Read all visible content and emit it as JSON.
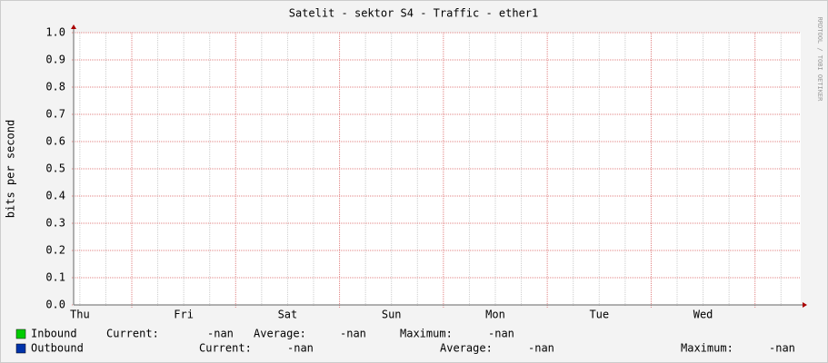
{
  "chart_data": {
    "type": "line",
    "title": "Satelit - sektor S4 - Traffic - ether1",
    "y_label": "bits per second",
    "watermark": "RRDTOOL / TOBI OETIKER",
    "categories": [
      "Thu",
      "Fri",
      "Sat",
      "Sun",
      "Mon",
      "Tue",
      "Wed"
    ],
    "ylim": [
      0,
      1
    ],
    "yticks": [
      {
        "value": 0,
        "label": "0.0"
      },
      {
        "value": 0.1,
        "label": "0.1"
      },
      {
        "value": 0.2,
        "label": "0.2"
      },
      {
        "value": 0.3,
        "label": "0.3"
      },
      {
        "value": 0.4,
        "label": "0.4"
      },
      {
        "value": 0.5,
        "label": "0.5"
      },
      {
        "value": 0.6,
        "label": "0.6"
      },
      {
        "value": 0.7,
        "label": "0.7"
      },
      {
        "value": 0.8,
        "label": "0.8"
      },
      {
        "value": 0.9,
        "label": "0.9"
      },
      {
        "value": 1,
        "label": "1.0"
      }
    ],
    "grid": true,
    "series": [
      {
        "name": "Inbound",
        "color": "#00cc00",
        "values": [
          null,
          null,
          null,
          null,
          null,
          null,
          null
        ],
        "stats": [
          {
            "label": "Current:",
            "value": "-nan"
          },
          {
            "label": "Average:",
            "value": "-nan"
          },
          {
            "label": "Maximum:",
            "value": "-nan"
          }
        ]
      },
      {
        "name": "Outbound",
        "color": "#0033aa",
        "values": [
          null,
          null,
          null,
          null,
          null,
          null,
          null
        ],
        "stats": [
          {
            "label": "Current:",
            "value": "-nan"
          },
          {
            "label": "Average:",
            "value": "-nan"
          },
          {
            "label": "Maximum:",
            "value": "-nan"
          }
        ]
      }
    ]
  }
}
